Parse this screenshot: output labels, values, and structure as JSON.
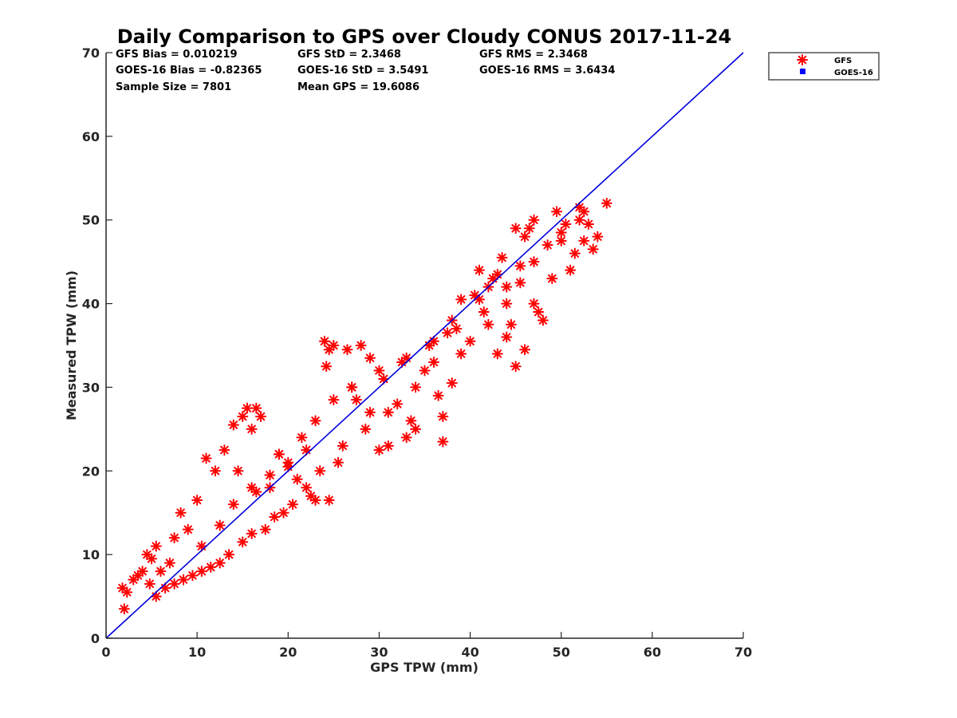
{
  "chart_data": {
    "type": "scatter",
    "title": "Daily Comparison to GPS over Cloudy CONUS 2017-11-24",
    "xlabel": "GPS TPW (mm)",
    "ylabel": "Measured TPW (mm)",
    "xlim": [
      0,
      70
    ],
    "ylim": [
      0,
      70
    ],
    "xticks": [
      "0",
      "10",
      "20",
      "30",
      "40",
      "50",
      "60",
      "70"
    ],
    "yticks": [
      "0",
      "10",
      "20",
      "30",
      "40",
      "50",
      "60",
      "70"
    ],
    "grid": false,
    "legend_position": "outside-top-right",
    "reference_line": {
      "x": [
        0,
        70
      ],
      "y": [
        0,
        70
      ],
      "color": "#0000dd"
    },
    "stats": [
      {
        "label": "GFS Bias = 0.010219"
      },
      {
        "label": "GFS StD = 2.3468"
      },
      {
        "label": "GFS RMS = 2.3468"
      },
      {
        "label": "GOES-16 Bias = -0.82365"
      },
      {
        "label": "GOES-16 StD = 3.5491"
      },
      {
        "label": "GOES-16 RMS = 3.6434"
      },
      {
        "label": "Sample Size = 7801"
      },
      {
        "label": "Mean GPS = 19.6086"
      }
    ],
    "series": [
      {
        "name": "GFS",
        "marker": "asterisk",
        "color": "#ff0000",
        "x": [
          1.8,
          2.0,
          2.3,
          3.5,
          4.0,
          4.5,
          5.0,
          5.5,
          6.0,
          7.0,
          7.5,
          8.2,
          9.0,
          10.0,
          10.5,
          11.0,
          12.0,
          13.0,
          14.0,
          14.5,
          15.0,
          15.5,
          16.0,
          16.5,
          17.0,
          18.0,
          19.0,
          20.0,
          21.0,
          22.0,
          22.5,
          23.0,
          24.0,
          24.2,
          24.5,
          25.0,
          26.5,
          27.0,
          28.0,
          29.0,
          30.0,
          31.0,
          32.0,
          33.0,
          33.5,
          34.0,
          35.0,
          36.5,
          37.0,
          37.0,
          38.0,
          39.0,
          40.0,
          41.0,
          42.0,
          42.5,
          43.0,
          43.5,
          44.0,
          44.5,
          45.0,
          45.5,
          46.0,
          46.5,
          47.0,
          48.0,
          49.0,
          50.0,
          51.0,
          52.0,
          52.5,
          53.0,
          53.5,
          54.0,
          55.0,
          45.0,
          46.0,
          47.0,
          48.5,
          49.5,
          50.5,
          51.5,
          52.0,
          40.5,
          41.5,
          42.0,
          43.0,
          44.0,
          45.5,
          47.5,
          38.5,
          39.0,
          36.0,
          37.5,
          30.5,
          31.0,
          32.5,
          35.5,
          34.0,
          29.0,
          28.5,
          27.5,
          26.0,
          25.5,
          23.5,
          22.0,
          20.5,
          19.5,
          18.5,
          17.5,
          16.0,
          15.0,
          13.5,
          12.5,
          11.5,
          10.5,
          9.5,
          8.5,
          7.5,
          6.5,
          5.5,
          3.0,
          4.8,
          12.5,
          14.0,
          16.0,
          19.0,
          21.5,
          23.0,
          25.0,
          27.0,
          30.0,
          33.0,
          36.0,
          38.0,
          41.0,
          44.0,
          47.0,
          50.0,
          52.5,
          24.5,
          20.0,
          18.0,
          16.5
        ],
        "y": [
          6.0,
          3.5,
          5.5,
          7.5,
          8.0,
          10.0,
          9.5,
          11.0,
          8.0,
          9.0,
          12.0,
          15.0,
          13.0,
          16.5,
          11.0,
          21.5,
          20.0,
          22.5,
          25.5,
          20.0,
          26.5,
          27.5,
          25.0,
          27.5,
          26.5,
          18.0,
          22.0,
          20.5,
          19.0,
          22.5,
          17.0,
          16.5,
          35.5,
          32.5,
          34.5,
          35.0,
          34.5,
          30.0,
          35.0,
          33.5,
          22.5,
          23.0,
          28.0,
          24.0,
          26.0,
          25.0,
          32.0,
          29.0,
          26.5,
          23.5,
          30.5,
          34.0,
          35.5,
          44.0,
          37.5,
          43.0,
          34.0,
          45.5,
          36.0,
          37.5,
          32.5,
          42.5,
          34.5,
          49.0,
          40.0,
          38.0,
          43.0,
          47.5,
          44.0,
          50.0,
          47.5,
          49.5,
          46.5,
          48.0,
          52.0,
          49.0,
          48.0,
          50.0,
          47.0,
          51.0,
          49.5,
          46.0,
          51.5,
          41.0,
          39.0,
          42.0,
          43.5,
          40.0,
          44.5,
          39.0,
          37.0,
          40.5,
          33.0,
          36.5,
          31.0,
          27.0,
          33.0,
          35.0,
          30.0,
          27.0,
          25.0,
          28.5,
          23.0,
          21.0,
          20.0,
          18.0,
          16.0,
          15.0,
          14.5,
          13.0,
          12.5,
          11.5,
          10.0,
          9.0,
          8.5,
          8.0,
          7.5,
          7.0,
          6.5,
          6.0,
          5.0,
          7.0,
          6.5,
          13.5,
          16.0,
          18.0,
          22.0,
          24.0,
          26.0,
          28.5,
          30.0,
          32.0,
          33.5,
          35.5,
          38.0,
          40.5,
          42.0,
          45.0,
          48.5,
          51.0,
          16.5,
          21.0,
          19.5,
          17.5
        ]
      },
      {
        "name": "GOES-16",
        "marker": "square",
        "color": "#0000ff",
        "x": [],
        "y": []
      }
    ]
  }
}
